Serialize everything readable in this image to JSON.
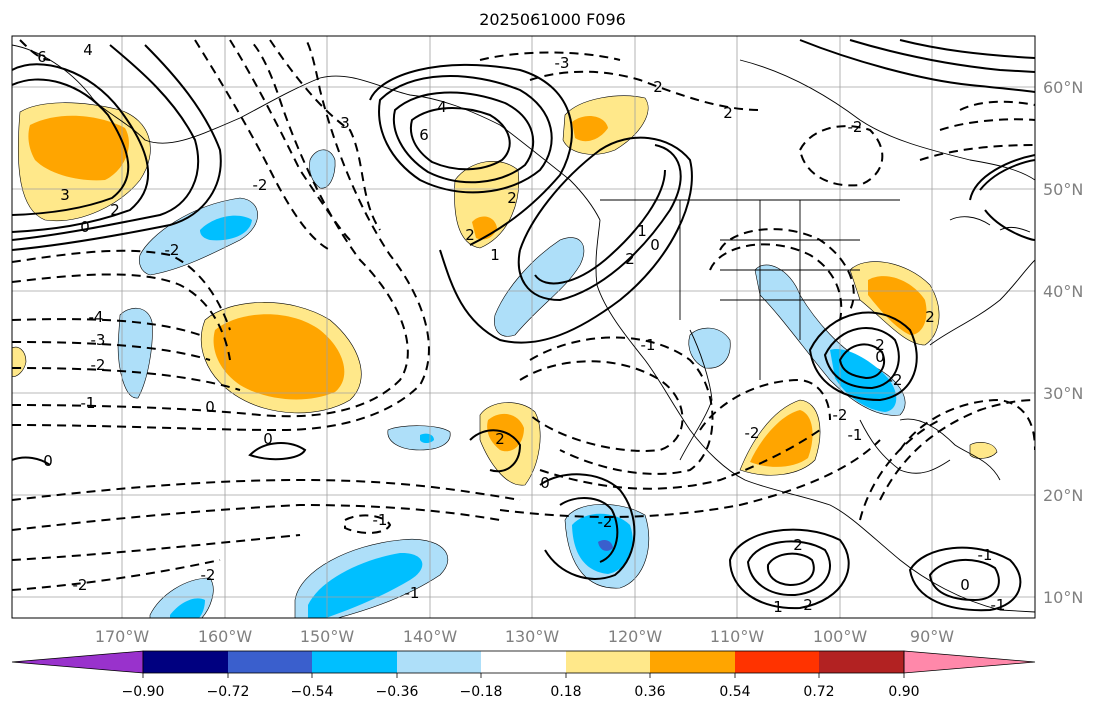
{
  "title": "2025061000 F096",
  "map": {
    "lon_ticks": [
      "170°W",
      "160°W",
      "150°W",
      "140°W",
      "130°W",
      "120°W",
      "110°W",
      "100°W",
      "90°W"
    ],
    "lat_ticks": [
      "60°N",
      "50°N",
      "40°N",
      "30°N",
      "20°N",
      "10°N"
    ],
    "contour_labels": [
      "6",
      "4",
      "3",
      "3",
      "2",
      "0",
      "-2",
      "-4",
      "-3",
      "-2",
      "-1",
      "0",
      "0",
      "0",
      "-3",
      "6",
      "4",
      "2",
      "2",
      "-2",
      "1",
      "2",
      "-1",
      "0",
      "2",
      "-2",
      "2",
      "0",
      "-2",
      "2",
      "2",
      "1",
      "-1",
      "-2",
      "-2",
      "2",
      "0",
      "-2",
      "-1",
      "0",
      "-2",
      "-1",
      "-1",
      "2",
      "-2",
      "1",
      "2",
      "-1"
    ],
    "grid": true,
    "colors": {
      "cold_light": "#aedff9",
      "cold_mid": "#00bfff",
      "cold_dark": "#3a5fcd",
      "warm_light": "#ffe88a",
      "warm_mid": "#ffa500",
      "warm_dark": "#ff3300"
    }
  },
  "colorbar": {
    "tick_labels": [
      "−0.90",
      "−0.72",
      "−0.54",
      "−0.36",
      "−0.18",
      "0.18",
      "0.36",
      "0.54",
      "0.72",
      "0.90"
    ],
    "colors": [
      "#9932cc",
      "#000080",
      "#3a5fcd",
      "#00bfff",
      "#aedff9",
      "#ffffff",
      "#ffe88a",
      "#ffa500",
      "#ff3300",
      "#b22222",
      "#ff88aa"
    ]
  }
}
